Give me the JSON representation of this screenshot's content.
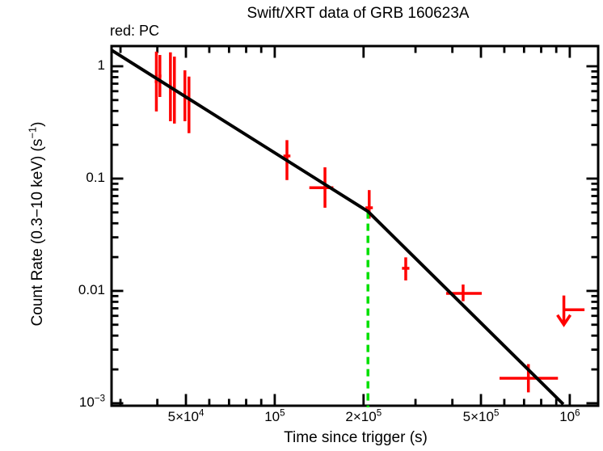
{
  "chart_data": {
    "type": "scatter",
    "title": "Swift/XRT data of GRB 160623A",
    "mode_label": "red: PC",
    "xlabel": "Time since trigger (s)",
    "ylabel_parts": [
      {
        "t": "Count Rate (0.3−10 keV) (s"
      },
      {
        "t": "−1",
        "sup": true
      },
      {
        "t": ")"
      }
    ],
    "xscale": "log",
    "yscale": "log",
    "grid": false,
    "xlim": [
      27980,
      1248000
    ],
    "ylim": [
      0.00095,
      1.513
    ],
    "xticks": [
      {
        "v": 50000,
        "label": "5×10^4"
      },
      {
        "v": 100000,
        "label": "10^5"
      },
      {
        "v": 200000,
        "label": "2×10^5"
      },
      {
        "v": 500000,
        "label": "5×10^5"
      },
      {
        "v": 1000000,
        "label": "10^6"
      }
    ],
    "yticks": [
      {
        "v": 1,
        "label": "1"
      },
      {
        "v": 0.1,
        "label": "0.1"
      },
      {
        "v": 0.01,
        "label": "0.01"
      },
      {
        "v": 0.001,
        "label": "10^−3"
      }
    ],
    "colors": {
      "data": "#ff0000",
      "fit": "#000000",
      "break_line": "#00e000",
      "frame": "#000000"
    },
    "series_name": "PC mode count rate",
    "points": [
      {
        "t": 39700,
        "t_lo": 39200,
        "t_hi": 40200,
        "rate": 0.73,
        "r_lo": 0.396,
        "r_hi": 1.35
      },
      {
        "t": 40800,
        "t_lo": 40300,
        "t_hi": 41300,
        "rate": 0.82,
        "r_lo": 0.533,
        "r_hi": 1.26
      },
      {
        "t": 44300,
        "t_lo": 43800,
        "t_hi": 44800,
        "rate": 0.66,
        "r_lo": 0.324,
        "r_hi": 1.33
      },
      {
        "t": 45700,
        "t_lo": 45200,
        "t_hi": 46200,
        "rate": 0.61,
        "r_lo": 0.309,
        "r_hi": 1.22
      },
      {
        "t": 49600,
        "t_lo": 49100,
        "t_hi": 50100,
        "rate": 0.55,
        "r_lo": 0.324,
        "r_hi": 0.92
      },
      {
        "t": 51200,
        "t_lo": 50700,
        "t_hi": 51700,
        "rate": 0.45,
        "r_lo": 0.254,
        "r_hi": 0.81
      },
      {
        "t": 110000,
        "t_lo": 107000,
        "t_hi": 113000,
        "rate": 0.159,
        "r_lo": 0.097,
        "r_hi": 0.22
      },
      {
        "t": 148000,
        "t_lo": 131000,
        "t_hi": 158000,
        "rate": 0.083,
        "r_lo": 0.055,
        "r_hi": 0.126
      },
      {
        "t": 209000,
        "t_lo": 203000,
        "t_hi": 215000,
        "rate": 0.055,
        "r_lo": 0.044,
        "r_hi": 0.079
      },
      {
        "t": 278000,
        "t_lo": 270000,
        "t_hi": 286000,
        "rate": 0.0159,
        "r_lo": 0.0124,
        "r_hi": 0.0199
      },
      {
        "t": 435000,
        "t_lo": 381000,
        "t_hi": 503000,
        "rate": 0.0095,
        "r_lo": 0.0081,
        "r_hi": 0.0114
      },
      {
        "t": 724000,
        "t_lo": 578000,
        "t_hi": 912000,
        "rate": 0.00167,
        "r_lo": 0.00125,
        "r_hi": 0.00223
      }
    ],
    "upper_limit": {
      "t": 955000,
      "t_hi": 1122000,
      "rate": 0.0068,
      "r_top": 0.0091,
      "r_bot": 0.005,
      "direction": "down"
    },
    "fit_line": [
      [
        27980,
        1.39
      ],
      [
        207000,
        0.051
      ],
      [
        951000,
        0.00098
      ]
    ],
    "break_time": 207000
  }
}
